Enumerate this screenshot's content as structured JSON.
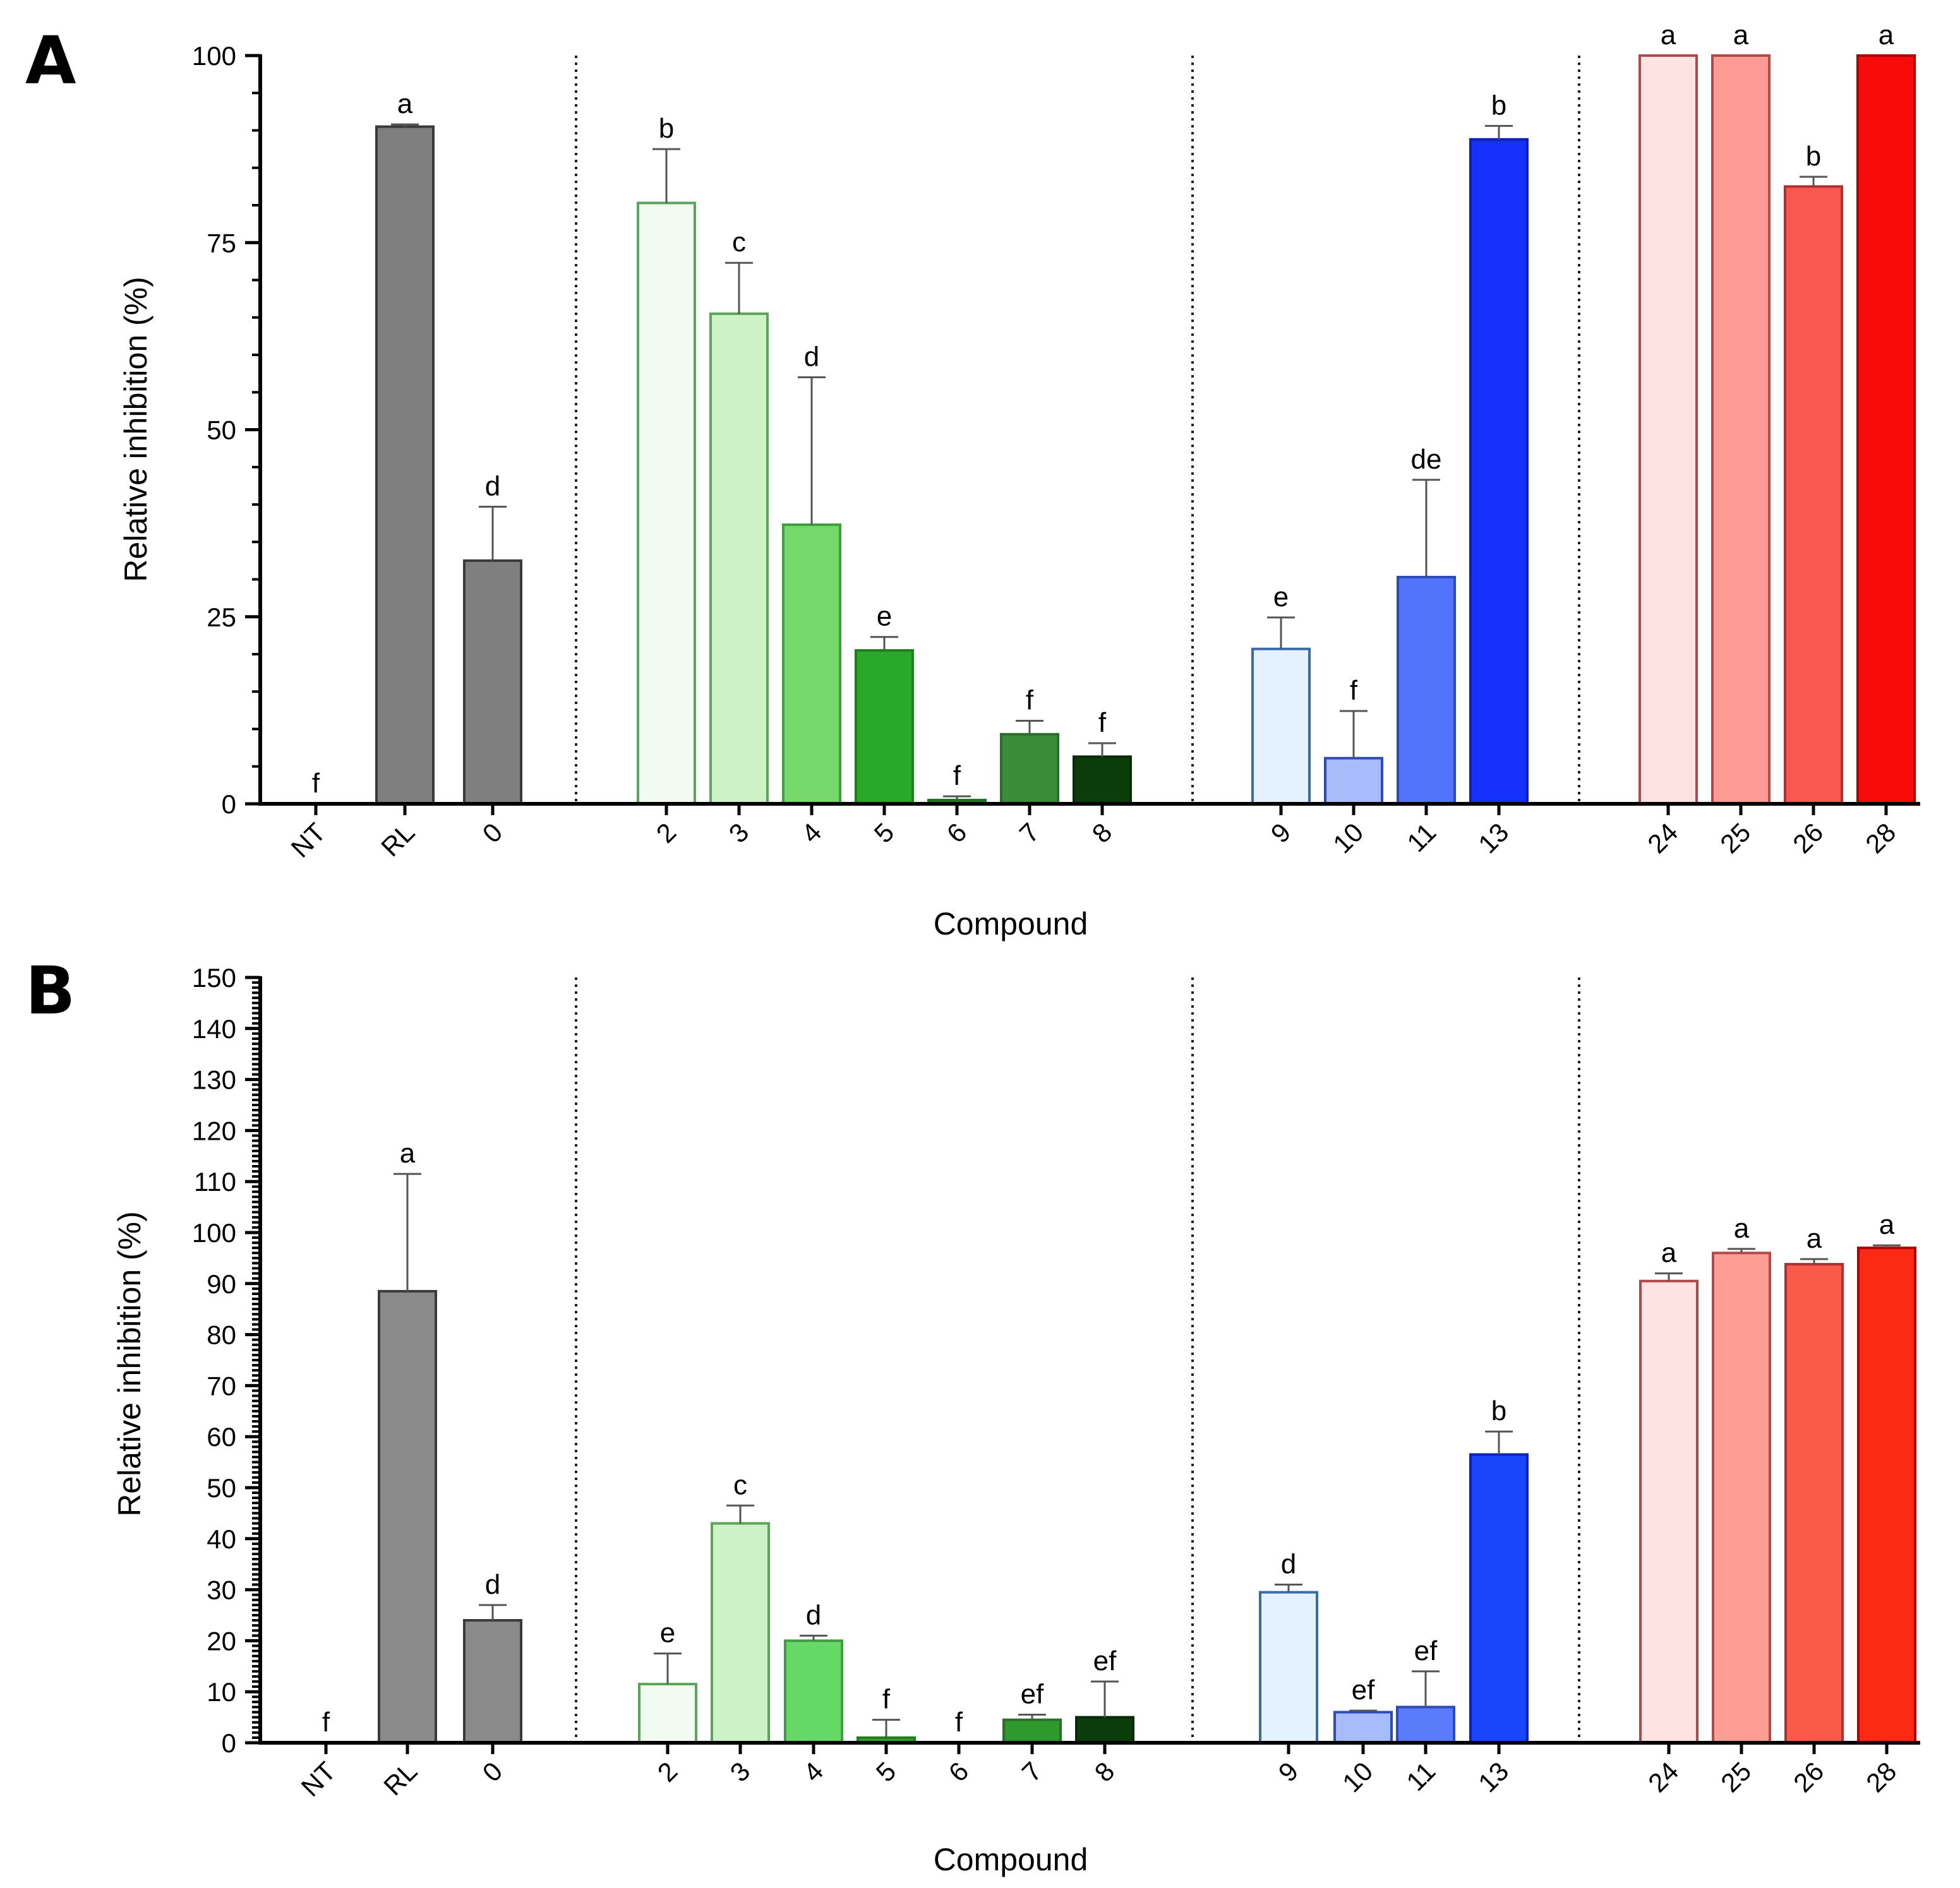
{
  "chart_data": [
    {
      "panel": "A",
      "type": "bar",
      "xlabel": "Compound",
      "ylabel": "Relative inhibition (%)",
      "ylim": [
        0,
        100
      ],
      "yticks": [
        0,
        25,
        50,
        75,
        100
      ],
      "categories": [
        "NT",
        "RL",
        "0",
        "2",
        "3",
        "4",
        "5",
        "6",
        "7",
        "8",
        "9",
        "10",
        "11",
        "13",
        "24",
        "25",
        "26",
        "28"
      ],
      "groups": [
        [
          "NT",
          "RL",
          "0"
        ],
        [
          "2",
          "3",
          "4",
          "5",
          "6",
          "7",
          "8"
        ],
        [
          "9",
          "10",
          "11",
          "13"
        ],
        [
          "24",
          "25",
          "26",
          "28"
        ]
      ],
      "values": [
        0,
        90.5,
        32.5,
        80.3,
        65.5,
        37.3,
        20.5,
        0.5,
        9.3,
        6.3,
        20.7,
        6.1,
        30.3,
        88.8,
        100,
        100,
        82.5,
        100
      ],
      "errors": [
        0,
        0.3,
        7.2,
        7.2,
        6.8,
        19.7,
        1.8,
        0.5,
        1.8,
        1.8,
        4.2,
        6.3,
        13.0,
        1.8,
        0,
        0,
        1.3,
        0
      ],
      "significance": [
        "f",
        "a",
        "d",
        "b",
        "c",
        "d",
        "e",
        "f",
        "f",
        "f",
        "e",
        "f",
        "de",
        "b",
        "a",
        "a",
        "b",
        "a"
      ],
      "colors": [
        "#7f7f7f",
        "#7f7f7f",
        "#7f7f7f",
        "#f2fbf0",
        "#cdf2c8",
        "#76d86a",
        "#2aa82a",
        "#1f8c1f",
        "#3a8c3a",
        "#0b3d0b",
        "#e4f1ff",
        "#a8bcfb",
        "#5274fb",
        "#1630fb",
        "#fde3e2",
        "#fc9a93",
        "#fa5750",
        "#f80b0b"
      ],
      "edge_colors": [
        "#3a3a3a",
        "#3a3a3a",
        "#3a3a3a",
        "#5aa55a",
        "#5aa55a",
        "#3f9f3f",
        "#1e7f1e",
        "#1e6f1e",
        "#2a6f2a",
        "#0a2a0a",
        "#3a6aa8",
        "#2c4bb8",
        "#2c4bb8",
        "#1020b0",
        "#b04a4a",
        "#b04a4a",
        "#b03030",
        "#b00000"
      ]
    },
    {
      "panel": "B",
      "type": "bar",
      "xlabel": "Compound",
      "ylabel": "Relative inhibition (%)",
      "ylim": [
        0,
        150
      ],
      "yticks": [
        0,
        10,
        20,
        30,
        40,
        50,
        60,
        70,
        80,
        90,
        100,
        110,
        120,
        130,
        140,
        150
      ],
      "categories": [
        "NT",
        "RL",
        "0",
        "2",
        "3",
        "4",
        "5",
        "6",
        "7",
        "8",
        "9",
        "10",
        "11",
        "13",
        "24",
        "25",
        "26",
        "28"
      ],
      "groups": [
        [
          "NT",
          "RL",
          "0"
        ],
        [
          "2",
          "3",
          "4",
          "5",
          "6",
          "7",
          "8"
        ],
        [
          "9",
          "10",
          "11",
          "13"
        ],
        [
          "24",
          "25",
          "26",
          "28"
        ]
      ],
      "values": [
        0,
        88.5,
        24.0,
        11.5,
        43.0,
        20.0,
        1.0,
        0,
        4.5,
        5.0,
        29.5,
        6.0,
        7.0,
        56.5,
        90.5,
        96.0,
        93.8,
        97.0
      ],
      "errors": [
        0,
        23.0,
        3.0,
        6.0,
        3.5,
        1.0,
        3.5,
        0,
        1.0,
        7.0,
        1.5,
        0.3,
        7.0,
        4.5,
        1.5,
        0.8,
        1.0,
        0.5
      ],
      "significance": [
        "f",
        "a",
        "d",
        "e",
        "c",
        "d",
        "f",
        "f",
        "ef",
        "ef",
        "d",
        "ef",
        "ef",
        "b",
        "a",
        "a",
        "a",
        "a"
      ],
      "colors": [
        "#8a8a8a",
        "#8a8a8a",
        "#8a8a8a",
        "#f2fbf0",
        "#cdf2c8",
        "#66d866",
        "#2aa82a",
        "#1f8c1f",
        "#2e9a2e",
        "#0b3d0b",
        "#e4f1ff",
        "#a8bcfb",
        "#5a7cfb",
        "#1a46fb",
        "#fde3e2",
        "#fc9e94",
        "#fb5a48",
        "#fb2a12"
      ],
      "edge_colors": [
        "#3a3a3a",
        "#3a3a3a",
        "#3a3a3a",
        "#5aa55a",
        "#5aa55a",
        "#3f9f3f",
        "#1e7f1e",
        "#1e6f1e",
        "#2a6f2a",
        "#0a2a0a",
        "#3a6aa8",
        "#2c4bb8",
        "#2c4bb8",
        "#1020b0",
        "#b04a4a",
        "#b04a4a",
        "#b03030",
        "#b00000"
      ]
    }
  ]
}
